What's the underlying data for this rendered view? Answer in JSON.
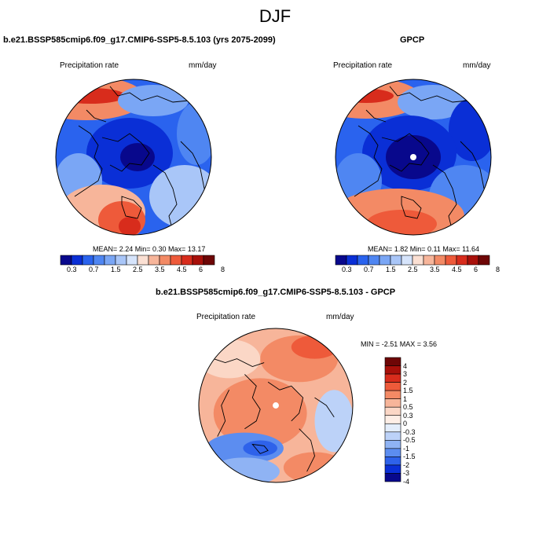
{
  "page_title": "DJF",
  "panels": [
    {
      "title": "b.e21.BSSP585cmip6.f09_g17.CMIP6-SSP5-8.5.103 (yrs 2075-2099)",
      "left_label": "Precipitation rate",
      "right_label": "mm/day",
      "stats": "MEAN=  2.24  Min=  0.30  Max=  13.17",
      "colorbar_ticks": [
        "0.3",
        "0.7",
        "1.5",
        "2.5",
        "3.5",
        "4.5",
        "6",
        "8"
      ]
    },
    {
      "title": "GPCP",
      "left_label": "Precipitation rate",
      "right_label": "mm/day",
      "stats": "MEAN=  1.82  Min=  0.11  Max=  11.64",
      "colorbar_ticks": [
        "0.3",
        "0.7",
        "1.5",
        "2.5",
        "3.5",
        "4.5",
        "6",
        "8"
      ]
    },
    {
      "title": "b.e21.BSSP585cmip6.f09_g17.CMIP6-SSP5-8.5.103 - GPCP",
      "left_label": "Precipitation rate",
      "right_label": "mm/day",
      "stats": "MIN =  -2.51 MAX =   3.56",
      "colorbar_ticks": [
        "4",
        "3",
        "2",
        "1.5",
        "1",
        "0.5",
        "0.3",
        "0",
        "-0.3",
        "-0.5",
        "-1",
        "-1.5",
        "-2",
        "-3",
        "-4"
      ]
    }
  ],
  "colors": {
    "abs_scale": [
      "#08088c",
      "#0a2fd6",
      "#2a63ee",
      "#4f86f2",
      "#7aa6f5",
      "#a9c6f8",
      "#d6e4fb",
      "#fbe0d3",
      "#f7b59a",
      "#f38a65",
      "#ee5a3a",
      "#d82c1c",
      "#a8100a",
      "#6e0606"
    ],
    "diff_scale": [
      "#6e0606",
      "#a8100a",
      "#d82c1c",
      "#ee5a3a",
      "#f38a65",
      "#f7b59a",
      "#fbd7c6",
      "#fdeee6",
      "#e3edfb",
      "#bcd2f8",
      "#8fb3f4",
      "#5c8df0",
      "#2e62ea",
      "#0a2fd6",
      "#08088c"
    ],
    "coastline": "#000000"
  }
}
